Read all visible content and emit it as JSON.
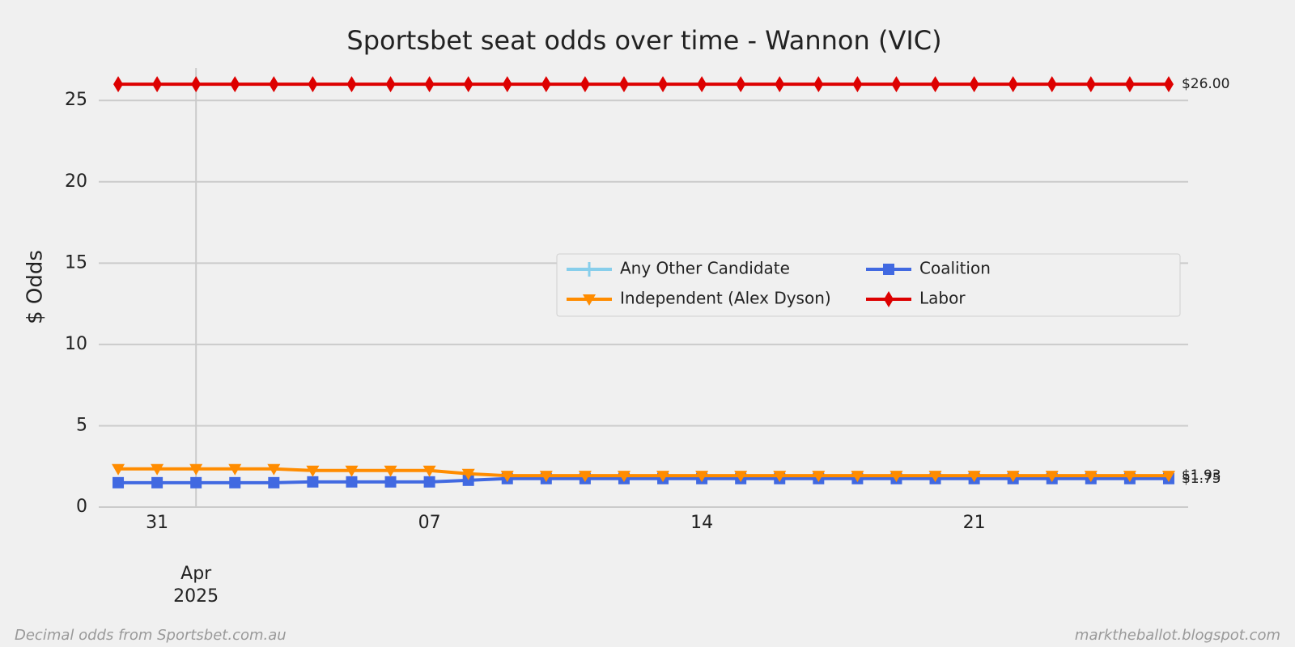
{
  "chart_data": {
    "type": "line",
    "title": "Sportsbet seat odds over time - Wannon (VIC)",
    "ylabel": "$ Odds",
    "footer_left": "Decimal odds from Sportsbet.com.au",
    "footer_right": "marktheballot.blogspot.com",
    "x": [
      "2025-03-30",
      "2025-03-31",
      "2025-04-01",
      "2025-04-02",
      "2025-04-03",
      "2025-04-04",
      "2025-04-05",
      "2025-04-06",
      "2025-04-07",
      "2025-04-08",
      "2025-04-09",
      "2025-04-10",
      "2025-04-11",
      "2025-04-12",
      "2025-04-13",
      "2025-04-14",
      "2025-04-15",
      "2025-04-16",
      "2025-04-17",
      "2025-04-18",
      "2025-04-19",
      "2025-04-20",
      "2025-04-21",
      "2025-04-22",
      "2025-04-23",
      "2025-04-24",
      "2025-04-25",
      "2025-04-26"
    ],
    "xlim": [
      "2025-03-29T12:00:00Z",
      "2025-04-26T12:00:00Z"
    ],
    "xticks_major": [
      {
        "value": "2025-04-01",
        "label": "Apr\n2025"
      }
    ],
    "xticks_minor": [
      {
        "value": "2025-03-31",
        "label": "31"
      },
      {
        "value": "2025-04-07",
        "label": "07"
      },
      {
        "value": "2025-04-14",
        "label": "14"
      },
      {
        "value": "2025-04-21",
        "label": "21"
      }
    ],
    "ylim": [
      0,
      27
    ],
    "yticks": [
      0,
      5,
      10,
      15,
      20,
      25
    ],
    "grid": true,
    "legend": "center-right",
    "series": [
      {
        "name": "Any Other Candidate",
        "color": "#87ceeb",
        "marker": "plus",
        "values": [
          null,
          null,
          null,
          null,
          null,
          null,
          null,
          null,
          null,
          null,
          null,
          null,
          null,
          null,
          null,
          null,
          null,
          null,
          null,
          null,
          null,
          null,
          null,
          null,
          null,
          null,
          null,
          null
        ]
      },
      {
        "name": "Coalition",
        "color": "#4169e1",
        "marker": "square",
        "values": [
          1.5,
          1.5,
          1.5,
          1.5,
          1.5,
          1.55,
          1.55,
          1.55,
          1.55,
          1.65,
          1.75,
          1.75,
          1.75,
          1.75,
          1.75,
          1.75,
          1.75,
          1.75,
          1.75,
          1.75,
          1.75,
          1.75,
          1.75,
          1.75,
          1.75,
          1.75,
          1.75,
          1.75
        ],
        "value_labels": [
          null,
          null,
          null,
          null,
          null,
          null,
          null,
          null,
          null,
          null,
          null,
          null,
          null,
          null,
          null,
          null,
          null,
          null,
          null,
          null,
          null,
          null,
          null,
          null,
          null,
          null,
          null,
          "$1.75"
        ]
      },
      {
        "name": "Independent (Alex Dyson)",
        "color": "#ff8c00",
        "marker": "triangle-down",
        "values": [
          2.35,
          2.35,
          2.35,
          2.35,
          2.35,
          2.25,
          2.25,
          2.25,
          2.25,
          2.05,
          1.93,
          1.93,
          1.93,
          1.93,
          1.93,
          1.93,
          1.93,
          1.93,
          1.93,
          1.93,
          1.93,
          1.93,
          1.93,
          1.93,
          1.93,
          1.93,
          1.93,
          1.93
        ],
        "value_labels": [
          null,
          null,
          null,
          null,
          null,
          null,
          null,
          null,
          null,
          null,
          null,
          null,
          null,
          null,
          null,
          null,
          null,
          null,
          null,
          null,
          null,
          null,
          null,
          null,
          null,
          null,
          null,
          "$1.93"
        ]
      },
      {
        "name": "Labor",
        "color": "#dd0000",
        "marker": "diamond",
        "values": [
          26,
          26,
          26,
          26,
          26,
          26,
          26,
          26,
          26,
          26,
          26,
          26,
          26,
          26,
          26,
          26,
          26,
          26,
          26,
          26,
          26,
          26,
          26,
          26,
          26,
          26,
          26,
          26
        ],
        "value_labels": [
          null,
          null,
          null,
          null,
          null,
          null,
          null,
          null,
          null,
          null,
          null,
          null,
          null,
          null,
          null,
          null,
          null,
          null,
          null,
          null,
          null,
          null,
          null,
          null,
          null,
          null,
          null,
          "$26.00"
        ]
      }
    ]
  }
}
